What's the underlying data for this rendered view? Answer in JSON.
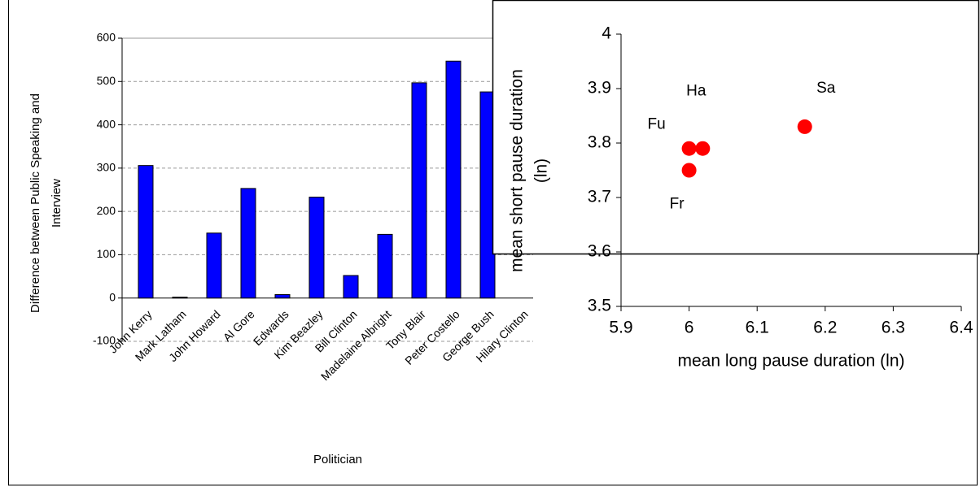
{
  "chart_data": [
    {
      "type": "bar",
      "y_label": [
        "Difference between Public Speaking and",
        "Interview"
      ],
      "x_label": "Politician",
      "categories": [
        "John Kerry",
        "Mark Latham",
        "John Howard",
        "Al Gore",
        "Edwards",
        "Kim Beazley",
        "Bill Clinton",
        "Madelaine Albright",
        "Tony Blair",
        "Peter Costello",
        "George Bush",
        "Hilary Clinton"
      ],
      "values": [
        306,
        2,
        150,
        253,
        8,
        233,
        52,
        147,
        497,
        547,
        476,
        null
      ],
      "color": "#0000ff",
      "ylim": [
        -100,
        600
      ],
      "yticks": [
        -100,
        0,
        100,
        200,
        300,
        400,
        500,
        600
      ],
      "grid": true
    },
    {
      "type": "scatter",
      "x_label": "mean long pause duration (ln)",
      "y_label": [
        "mean short pause duration",
        "(ln)"
      ],
      "x": [
        6.0,
        6.02,
        6.0,
        6.17
      ],
      "values": [
        3.79,
        3.79,
        3.75,
        3.83
      ],
      "point_labels": [
        "Fu",
        "Ha",
        "Fr",
        "Sa"
      ],
      "color": "#ff0000",
      "xlim": [
        5.9,
        6.4
      ],
      "xticks": [
        5.9,
        6,
        6.1,
        6.2,
        6.3,
        6.4
      ],
      "ylim": [
        3.5,
        4
      ],
      "yticks": [
        3.5,
        3.6,
        3.7,
        3.8,
        3.9,
        4
      ]
    }
  ]
}
